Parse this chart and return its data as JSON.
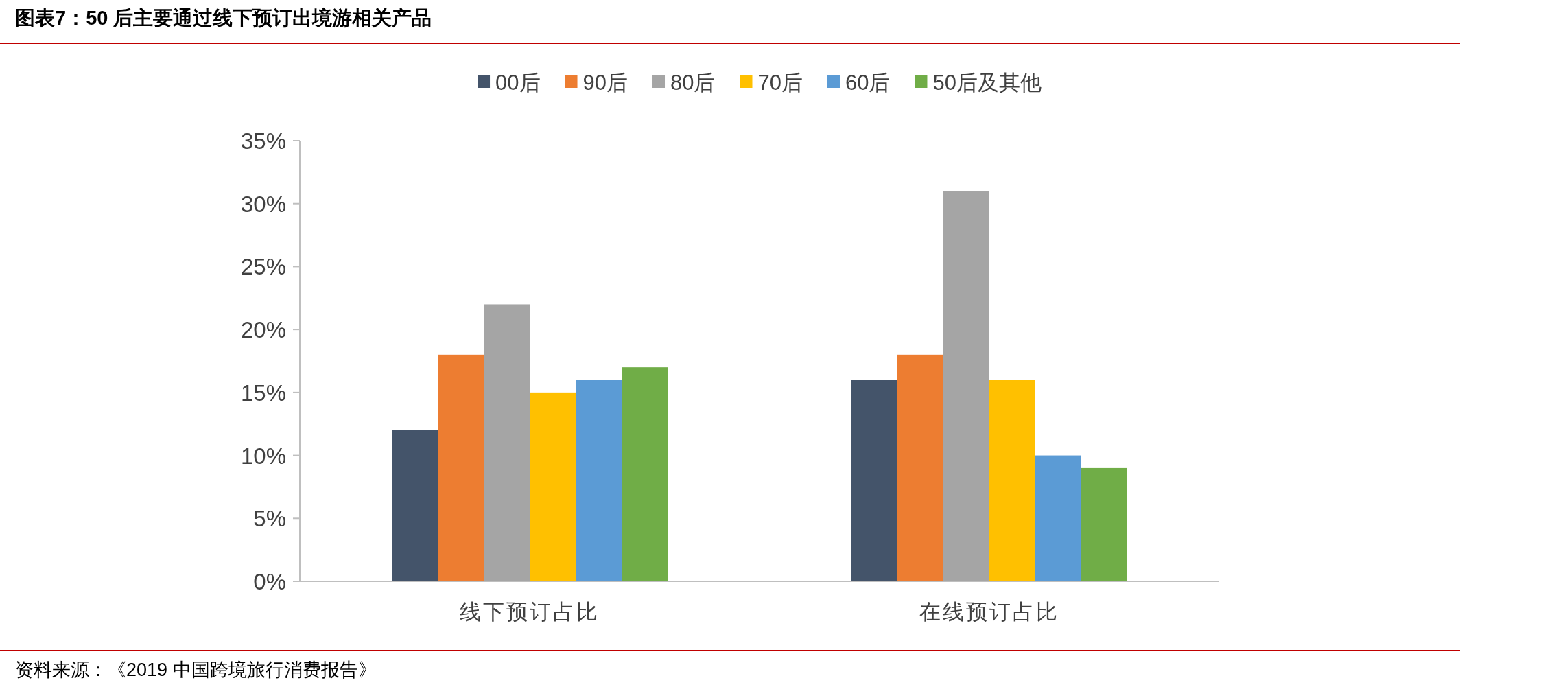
{
  "chart_data": {
    "type": "bar",
    "title": "图表7：50 后主要通过线下预订出境游相关产品",
    "categories": [
      "线下预订占比",
      "在线预订占比"
    ],
    "series": [
      {
        "name": "00后",
        "color": "#44546a",
        "values": [
          12,
          16
        ]
      },
      {
        "name": "90后",
        "color": "#ed7d31",
        "values": [
          18,
          18
        ]
      },
      {
        "name": "80后",
        "color": "#a5a5a5",
        "values": [
          22,
          31
        ]
      },
      {
        "name": "70后",
        "color": "#ffc000",
        "values": [
          15,
          16
        ]
      },
      {
        "name": "60后",
        "color": "#5b9bd5",
        "values": [
          16,
          10
        ]
      },
      {
        "name": "50后及其他",
        "color": "#70ad47",
        "values": [
          17,
          9
        ]
      }
    ],
    "ylim": [
      0,
      35
    ],
    "yticks": [
      {
        "value": 0,
        "label": "0%"
      },
      {
        "value": 5,
        "label": "5%"
      },
      {
        "value": 10,
        "label": "10%"
      },
      {
        "value": 15,
        "label": "15%"
      },
      {
        "value": 20,
        "label": "20%"
      },
      {
        "value": 25,
        "label": "25%"
      },
      {
        "value": 30,
        "label": "30%"
      },
      {
        "value": 35,
        "label": "35%"
      }
    ],
    "grid": false,
    "legend": "top",
    "annotations": [
      "资料来源：《2019 中国跨境旅行消费报告》"
    ]
  }
}
